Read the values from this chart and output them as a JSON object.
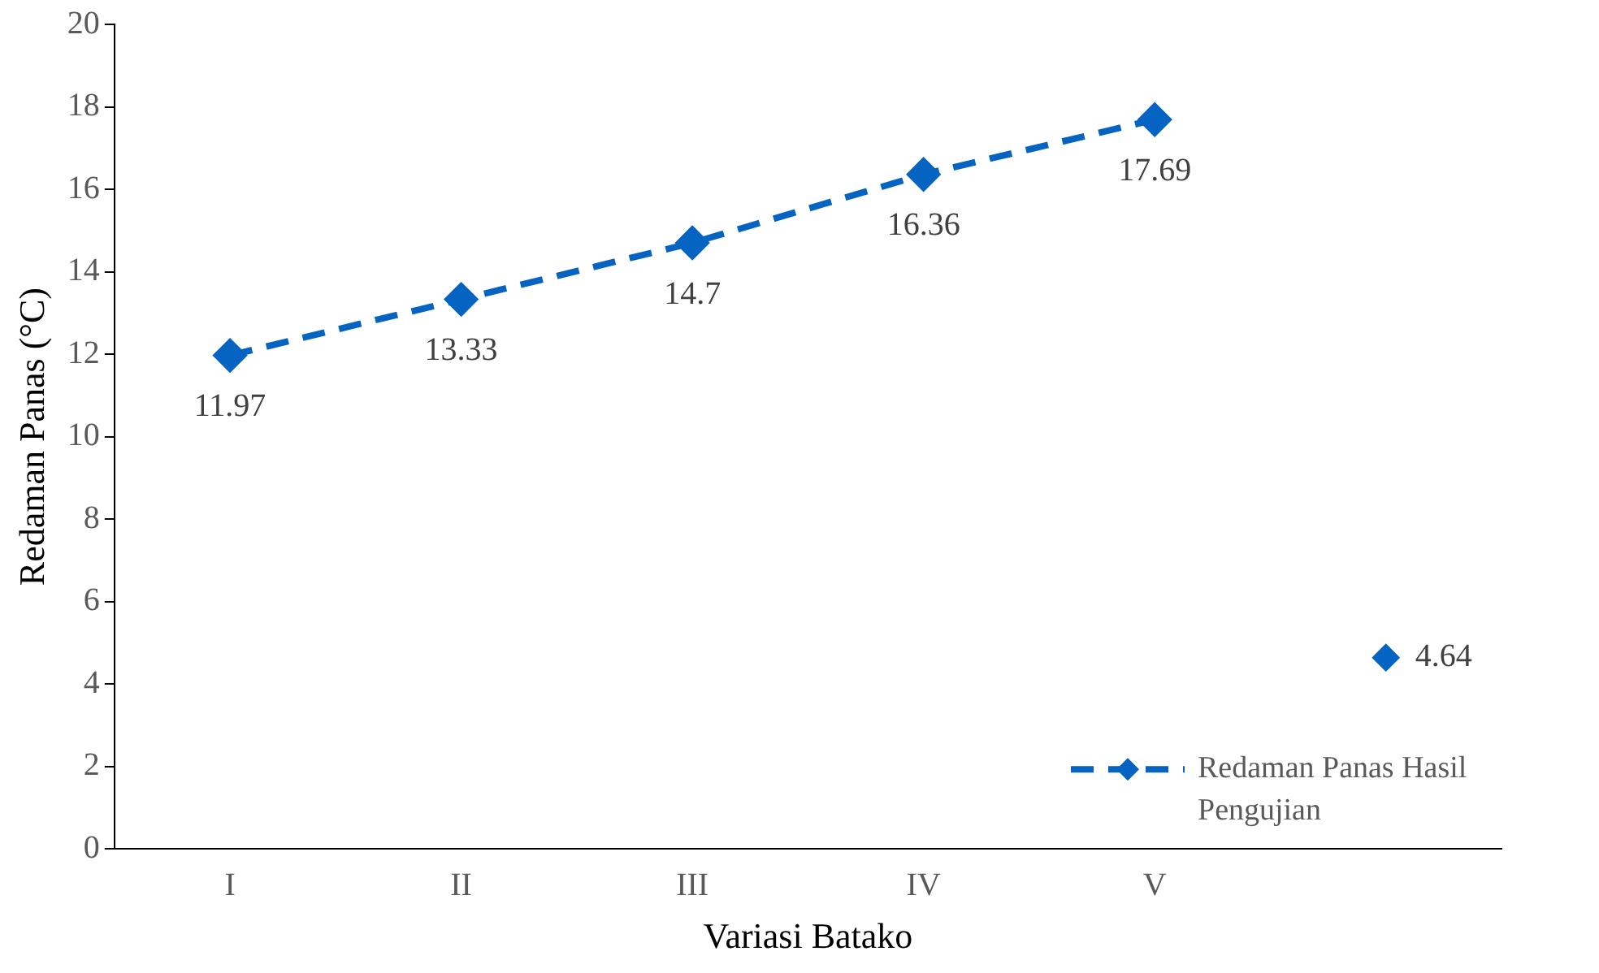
{
  "chart_data": {
    "type": "line",
    "xlabel": "Variasi Batako",
    "ylabel": "Redaman Panas (°C)",
    "categories": [
      "I",
      "II",
      "III",
      "IV",
      "V",
      null
    ],
    "series": [
      {
        "name": "Redaman Panas Hasil Pengujian",
        "color": "#0563c1",
        "values": [
          11.97,
          13.33,
          14.7,
          16.36,
          17.69,
          null
        ]
      },
      {
        "type": "scatter",
        "color": "#0563c1",
        "values": [
          null,
          null,
          null,
          null,
          null,
          4.64
        ]
      }
    ],
    "ylim": [
      0,
      20
    ],
    "yticks": [
      0,
      2,
      4,
      6,
      8,
      10,
      12,
      14,
      16,
      18,
      20
    ],
    "grid": false,
    "legend": "bottom right",
    "marker": "diamond",
    "line_style": "dashed",
    "data_labels": true
  }
}
